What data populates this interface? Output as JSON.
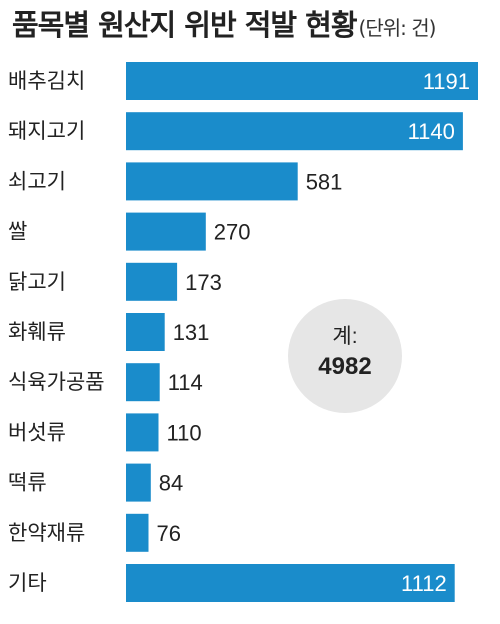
{
  "header": {
    "title": "품목별 원산지 위반 적발 현황",
    "unit": "(단위: 건)"
  },
  "total": {
    "label": "계:",
    "value": "4982"
  },
  "colors": {
    "bar": "#1a8ccb",
    "total_circle": "#e6e6e6",
    "value_inside": "#ffffff",
    "value_outside": "#222222"
  },
  "chart_data": {
    "type": "bar",
    "orientation": "horizontal",
    "categories": [
      "배추김치",
      "돼지고기",
      "쇠고기",
      "쌀",
      "닭고기",
      "화훼류",
      "식육가공품",
      "버섯류",
      "떡류",
      "한약재류",
      "기타"
    ],
    "values": [
      1191,
      1140,
      581,
      270,
      173,
      131,
      114,
      110,
      84,
      76,
      1112
    ],
    "title": "품목별 원산지 위반 적발 현황",
    "xlim": [
      0,
      1191
    ],
    "grid": false,
    "legend": "none"
  }
}
